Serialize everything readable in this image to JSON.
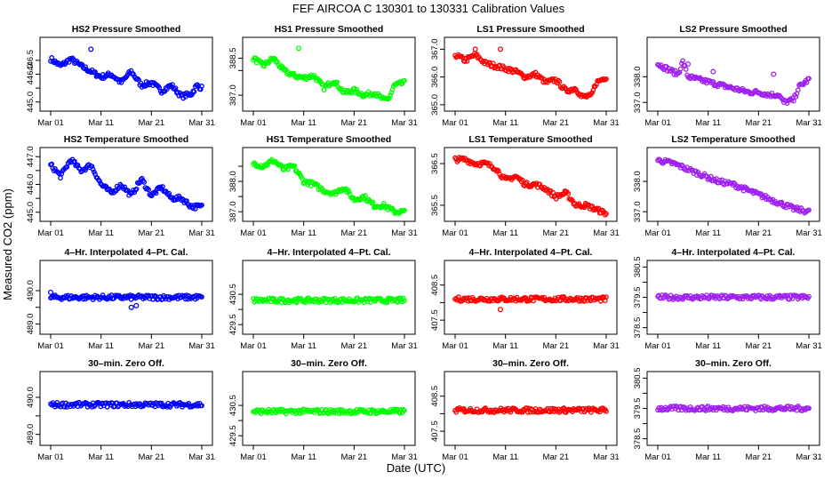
{
  "title": "FEF   AIRCOA C   130301 to 130331   Calibration Values",
  "xlabel": "Date (UTC)",
  "ylabel": "Measured CO2 (ppm)",
  "chart_data": [
    {
      "type": "scatter",
      "title": "HS2 Pressure Smoothed",
      "color": "#0000ff",
      "ylim": [
        444.8,
        447.2
      ],
      "yticks": [
        445.0,
        445.5,
        446.0,
        446.5
      ],
      "yticklabels": [
        "445.0",
        "",
        "446.0",
        "446.5"
      ],
      "trend": [
        [
          0,
          446.55
        ],
        [
          2,
          446.3
        ],
        [
          4,
          446.55
        ],
        [
          6,
          446.3
        ],
        [
          8,
          446.1
        ],
        [
          10,
          445.9
        ],
        [
          12,
          446.0
        ],
        [
          14,
          445.7
        ],
        [
          16,
          446.1
        ],
        [
          18,
          445.6
        ],
        [
          20,
          445.7
        ],
        [
          22,
          445.4
        ],
        [
          24,
          445.6
        ],
        [
          26,
          445.2
        ],
        [
          28,
          445.3
        ],
        [
          29,
          445.6
        ],
        [
          30,
          445.5
        ]
      ],
      "outliers": [
        [
          8,
          446.9
        ]
      ]
    },
    {
      "type": "scatter",
      "title": "HS1 Pressure Smoothed",
      "color": "#00ff00",
      "ylim": [
        386.5,
        389.2
      ],
      "yticks": [
        387.0,
        388.0,
        388.5
      ],
      "yticklabels": [
        "387.0",
        "",
        "388.5"
      ],
      "trend": [
        [
          0,
          388.5
        ],
        [
          2,
          388.2
        ],
        [
          4,
          388.5
        ],
        [
          6,
          388.0
        ],
        [
          8,
          387.8
        ],
        [
          10,
          387.7
        ],
        [
          12,
          387.8
        ],
        [
          14,
          387.3
        ],
        [
          16,
          387.6
        ],
        [
          18,
          387.1
        ],
        [
          20,
          387.2
        ],
        [
          22,
          387.0
        ],
        [
          24,
          387.1
        ],
        [
          26,
          386.8
        ],
        [
          27,
          386.9
        ],
        [
          28,
          387.4
        ],
        [
          30,
          387.5
        ]
      ],
      "outliers": [
        [
          9,
          388.9
        ]
      ]
    },
    {
      "type": "scatter",
      "title": "LS1 Pressure Smoothed",
      "color": "#ff0000",
      "ylim": [
        364.9,
        367.3
      ],
      "yticks": [
        365.0,
        366.0,
        367.0
      ],
      "yticklabels": [
        "365.0",
        "366.0",
        "367.0"
      ],
      "trend": [
        [
          0,
          366.8
        ],
        [
          2,
          366.6
        ],
        [
          4,
          366.8
        ],
        [
          6,
          366.5
        ],
        [
          8,
          366.4
        ],
        [
          10,
          366.3
        ],
        [
          12,
          366.2
        ],
        [
          14,
          366.0
        ],
        [
          16,
          366.1
        ],
        [
          18,
          365.8
        ],
        [
          20,
          365.9
        ],
        [
          22,
          365.5
        ],
        [
          24,
          365.6
        ],
        [
          25,
          365.3
        ],
        [
          27,
          365.3
        ],
        [
          28,
          365.8
        ],
        [
          30,
          366.0
        ]
      ],
      "outliers": [
        [
          4,
          367.0
        ],
        [
          9,
          367.0
        ]
      ]
    },
    {
      "type": "scatter",
      "title": "LS2 Pressure Smoothed",
      "color": "#a020f0",
      "ylim": [
        336.8,
        339.4
      ],
      "yticks": [
        337.0,
        338.0
      ],
      "yticklabels": [
        "337.0",
        "338.0"
      ],
      "trend": [
        [
          0,
          338.5
        ],
        [
          2,
          338.3
        ],
        [
          4,
          338.1
        ],
        [
          5,
          338.6
        ],
        [
          6,
          338.0
        ],
        [
          8,
          337.9
        ],
        [
          10,
          337.8
        ],
        [
          12,
          337.7
        ],
        [
          14,
          337.6
        ],
        [
          16,
          337.5
        ],
        [
          18,
          337.4
        ],
        [
          20,
          337.4
        ],
        [
          22,
          337.3
        ],
        [
          24,
          337.3
        ],
        [
          25,
          337.0
        ],
        [
          27,
          337.1
        ],
        [
          28,
          337.6
        ],
        [
          30,
          337.9
        ]
      ],
      "outliers": [
        [
          6,
          338.5
        ],
        [
          11,
          338.2
        ],
        [
          23,
          338.1
        ]
      ]
    },
    {
      "type": "scatter",
      "title": "HS2 Temperature Smoothed",
      "color": "#0000ff",
      "ylim": [
        444.8,
        447.2
      ],
      "yticks": [
        445.0,
        445.5,
        446.0,
        446.5,
        447.0
      ],
      "yticklabels": [
        "445.0",
        "",
        "446.0",
        "",
        "447.0"
      ],
      "trend": [
        [
          0,
          446.7
        ],
        [
          2,
          446.3
        ],
        [
          4,
          446.9
        ],
        [
          6,
          446.5
        ],
        [
          8,
          446.7
        ],
        [
          10,
          446.0
        ],
        [
          12,
          445.7
        ],
        [
          14,
          446.0
        ],
        [
          16,
          445.6
        ],
        [
          18,
          446.2
        ],
        [
          20,
          445.6
        ],
        [
          22,
          445.9
        ],
        [
          24,
          445.5
        ],
        [
          26,
          445.5
        ],
        [
          28,
          445.2
        ],
        [
          30,
          445.2
        ]
      ],
      "outliers": []
    },
    {
      "type": "scatter",
      "title": "HS1 Temperature Smoothed",
      "color": "#00ff00",
      "ylim": [
        386.8,
        389.0
      ],
      "yticks": [
        387.0,
        387.5,
        388.0,
        388.5
      ],
      "yticklabels": [
        "387.0",
        "",
        "388.0",
        ""
      ],
      "trend": [
        [
          0,
          388.6
        ],
        [
          2,
          388.5
        ],
        [
          4,
          388.7
        ],
        [
          6,
          388.4
        ],
        [
          8,
          388.5
        ],
        [
          10,
          388.0
        ],
        [
          12,
          387.9
        ],
        [
          14,
          387.7
        ],
        [
          16,
          387.6
        ],
        [
          18,
          387.8
        ],
        [
          20,
          387.4
        ],
        [
          22,
          387.5
        ],
        [
          24,
          387.2
        ],
        [
          26,
          387.2
        ],
        [
          28,
          387.0
        ],
        [
          30,
          387.0
        ]
      ],
      "outliers": []
    },
    {
      "type": "scatter",
      "title": "LS1 Temperature Smoothed",
      "color": "#ff0000",
      "ylim": [
        365.2,
        366.8
      ],
      "yticks": [
        365.5,
        366.5
      ],
      "yticklabels": [
        "365.5",
        "366.5"
      ],
      "trend": [
        [
          0,
          366.6
        ],
        [
          2,
          366.6
        ],
        [
          4,
          366.5
        ],
        [
          6,
          366.5
        ],
        [
          8,
          366.4
        ],
        [
          10,
          366.1
        ],
        [
          12,
          366.2
        ],
        [
          14,
          366.0
        ],
        [
          16,
          366.0
        ],
        [
          18,
          365.9
        ],
        [
          20,
          365.7
        ],
        [
          22,
          365.8
        ],
        [
          24,
          365.5
        ],
        [
          26,
          365.5
        ],
        [
          28,
          365.4
        ],
        [
          30,
          365.3
        ]
      ],
      "outliers": []
    },
    {
      "type": "scatter",
      "title": "LS2 Temperature Smoothed",
      "color": "#a020f0",
      "ylim": [
        336.8,
        339.0
      ],
      "yticks": [
        337.0,
        338.0
      ],
      "yticklabels": [
        "337.0",
        "338.0"
      ],
      "trend": [
        [
          0,
          338.7
        ],
        [
          3,
          338.6
        ],
        [
          6,
          338.4
        ],
        [
          9,
          338.2
        ],
        [
          12,
          338.0
        ],
        [
          15,
          337.9
        ],
        [
          18,
          337.7
        ],
        [
          21,
          337.5
        ],
        [
          24,
          337.3
        ],
        [
          27,
          337.1
        ],
        [
          30,
          337.0
        ]
      ],
      "outliers": []
    },
    {
      "type": "scatter",
      "title": "4–Hr. Interpolated 4–Pt. Cal.",
      "color": "#0000ff",
      "ylim": [
        488.8,
        490.8
      ],
      "yticks": [
        489.0,
        489.5,
        490.0
      ],
      "yticklabels": [
        "489.0",
        "",
        "490.0"
      ],
      "trend": [
        [
          0,
          489.8
        ],
        [
          30,
          489.8
        ]
      ],
      "outliers": [
        [
          0,
          489.95
        ],
        [
          16,
          489.5
        ],
        [
          17,
          489.55
        ]
      ]
    },
    {
      "type": "scatter",
      "title": "4–Hr. Interpolated 4–Pt. Cal.",
      "color": "#00ff00",
      "ylim": [
        429.3,
        431.5
      ],
      "yticks": [
        429.5,
        430.0,
        430.5
      ],
      "yticklabels": [
        "429.5",
        "",
        "430.5"
      ],
      "trend": [
        [
          0,
          430.3
        ],
        [
          30,
          430.3
        ]
      ],
      "outliers": []
    },
    {
      "type": "scatter",
      "title": "4–Hr. Interpolated 4–Pt. Cal.",
      "color": "#ff0000",
      "ylim": [
        407.2,
        409.1
      ],
      "yticks": [
        407.5,
        408.0,
        408.5
      ],
      "yticklabels": [
        "407.5",
        "",
        "408.5"
      ],
      "trend": [
        [
          0,
          408.1
        ],
        [
          30,
          408.1
        ]
      ],
      "outliers": [
        [
          9,
          407.8
        ]
      ]
    },
    {
      "type": "scatter",
      "title": "4–Hr. Interpolated 4–Pt. Cal.",
      "color": "#a020f0",
      "ylim": [
        378.4,
        380.6
      ],
      "yticks": [
        378.5,
        379.0,
        379.5,
        380.0,
        380.5
      ],
      "yticklabels": [
        "378.5",
        "",
        "379.5",
        "",
        "380.5"
      ],
      "trend": [
        [
          0,
          379.5
        ],
        [
          30,
          379.5
        ]
      ],
      "outliers": []
    },
    {
      "type": "scatter",
      "title": "30–min. Zero Off.",
      "color": "#0000ff",
      "ylim": [
        488.8,
        490.6
      ],
      "yticks": [
        489.0,
        489.5,
        490.0
      ],
      "yticklabels": [
        "489.0",
        "",
        "490.0"
      ],
      "trend": [
        [
          0,
          489.8
        ],
        [
          30,
          489.8
        ]
      ],
      "outliers": []
    },
    {
      "type": "scatter",
      "title": "30–min. Zero Off.",
      "color": "#00ff00",
      "ylim": [
        429.3,
        431.5
      ],
      "yticks": [
        429.5,
        430.0,
        430.5
      ],
      "yticklabels": [
        "429.5",
        "",
        "430.5"
      ],
      "trend": [
        [
          0,
          430.3
        ],
        [
          30,
          430.3
        ]
      ],
      "outliers": []
    },
    {
      "type": "scatter",
      "title": "30–min. Zero Off.",
      "color": "#ff0000",
      "ylim": [
        407.2,
        409.1
      ],
      "yticks": [
        407.5,
        408.0,
        408.5
      ],
      "yticklabels": [
        "407.5",
        "",
        "408.5"
      ],
      "trend": [
        [
          0,
          408.1
        ],
        [
          30,
          408.1
        ]
      ],
      "outliers": []
    },
    {
      "type": "scatter",
      "title": "30–min. Zero Off.",
      "color": "#a020f0",
      "ylim": [
        378.4,
        380.6
      ],
      "yticks": [
        378.5,
        379.0,
        379.5,
        380.0,
        380.5
      ],
      "yticklabels": [
        "378.5",
        "",
        "379.5",
        "",
        "380.5"
      ],
      "trend": [
        [
          0,
          379.5
        ],
        [
          30,
          379.5
        ]
      ],
      "outliers": []
    }
  ],
  "x_axis": {
    "range": [
      0,
      30
    ],
    "ticks": [
      0,
      10,
      20,
      30
    ],
    "ticklabels": [
      "Mar 01",
      "Mar 11",
      "Mar 21",
      "Mar 31"
    ]
  }
}
